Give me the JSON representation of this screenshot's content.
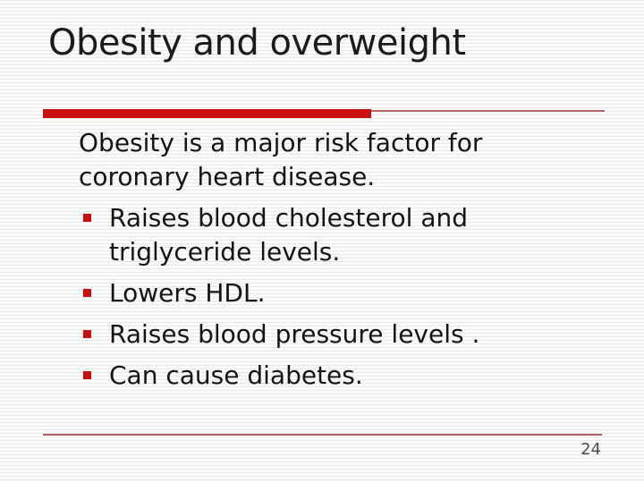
{
  "slide": {
    "title": "Obesity and overweight",
    "intro": "Obesity is a major risk factor for coronary heart disease.",
    "bullets": [
      "Raises blood cholesterol and triglyceride levels.",
      "Lowers HDL.",
      "Raises blood pressure levels .",
      "Can cause diabetes."
    ],
    "page_number": "24",
    "colors": {
      "accent_red": "#c90f0f",
      "rule_red": "#b26363",
      "title_text": "#1b1b1b",
      "body_text": "#141414",
      "page_number_text": "#4d4d4d"
    }
  }
}
